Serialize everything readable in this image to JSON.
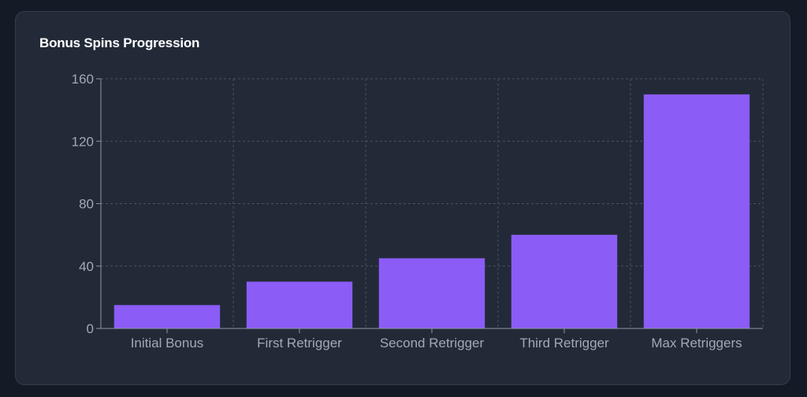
{
  "card": {
    "title": "Bonus Spins Progression"
  },
  "colors": {
    "background": "#141a26",
    "card": "#222a38",
    "bar": "#8b5cf6",
    "grid": "#4a5363",
    "axis": "#8d95a2",
    "tick_text": "#a3a9b4"
  },
  "chart_data": {
    "type": "bar",
    "title": "Bonus Spins Progression",
    "categories": [
      "Initial Bonus",
      "First Retrigger",
      "Second Retrigger",
      "Third Retrigger",
      "Max Retriggers"
    ],
    "values": [
      15,
      30,
      45,
      60,
      150
    ],
    "yticks": [
      0,
      40,
      80,
      120,
      160
    ],
    "ylim": [
      0,
      160
    ],
    "xlabel": "",
    "ylabel": "",
    "grid": true,
    "legend": false
  }
}
